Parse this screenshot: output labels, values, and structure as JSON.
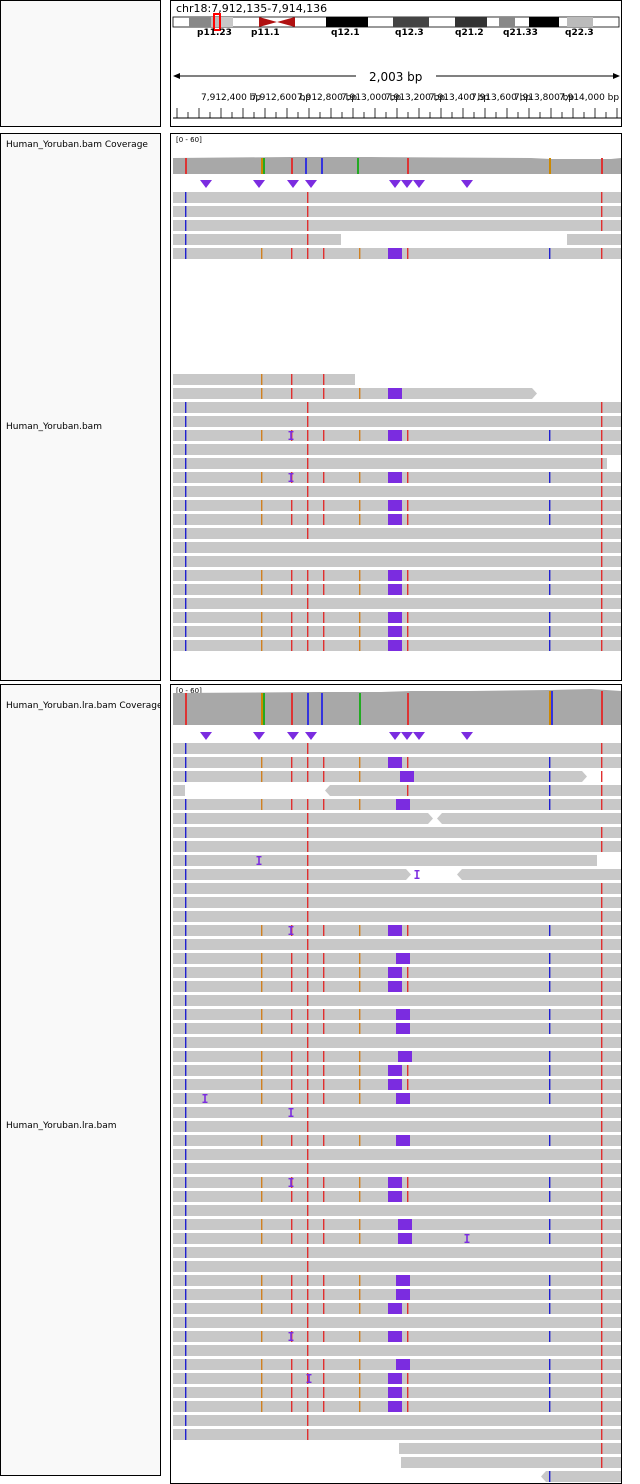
{
  "header": {
    "locus": "chr18:7,912,135-7,914,136",
    "span_label": "2,003 bp"
  },
  "ideogram": {
    "bands": [
      "p11.23",
      "p11.1",
      "q12.1",
      "q12.3",
      "q21.2",
      "q21.33",
      "q22.3"
    ]
  },
  "ruler": {
    "ticks": [
      "7,912,400 bp",
      "7,912,600 bp",
      "7,912,800 bp",
      "7,913,000 bp",
      "7,913,200 bp",
      "7,913,400 bp",
      "7,913,600 bp",
      "7,913,800 bp",
      "7,914,000 bp"
    ]
  },
  "tracks": {
    "bam_coverage": {
      "name": "Human_Yoruban.bam Coverage",
      "range": "[0 - 60]"
    },
    "bam": {
      "name": "Human_Yoruban.bam"
    },
    "lra_coverage": {
      "name": "Human_Yoruban.lra.bam Coverage",
      "range": "[0 - 60]"
    },
    "lra": {
      "name": "Human_Yoruban.lra.bam"
    }
  },
  "colors": {
    "read": "#c8c8c8",
    "coverage": "#a8a8a8",
    "insertion": "#7b2ce0",
    "mismatch_red": "#e03030",
    "mismatch_blue": "#2020d0",
    "mismatch_orange": "#d08020",
    "mismatch_green": "#20a020",
    "centromere": "#cc1010"
  }
}
